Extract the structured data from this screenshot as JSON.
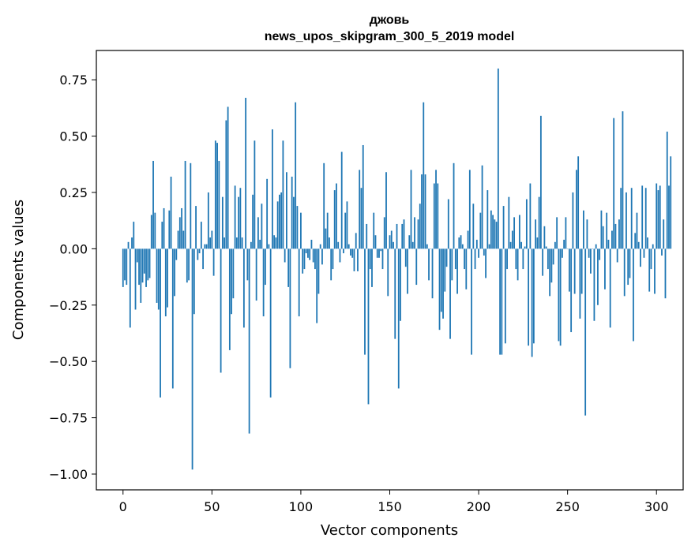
{
  "chart_data": {
    "type": "bar",
    "title_lines": [
      "джовь",
      "news_upos_skipgram_300_5_2019 model"
    ],
    "xlabel": "Vector components",
    "ylabel": "Components values",
    "xlim": [
      -15,
      315
    ],
    "ylim": [
      -1.07,
      0.88
    ],
    "xticks": [
      0,
      50,
      100,
      150,
      200,
      250,
      300
    ],
    "yticks": [
      -1.0,
      -0.75,
      -0.5,
      -0.25,
      0.0,
      0.25,
      0.5,
      0.75
    ],
    "xtick_labels": [
      "0",
      "50",
      "100",
      "150",
      "200",
      "250",
      "300"
    ],
    "ytick_labels": [
      "−1.00",
      "−0.75",
      "−0.50",
      "−0.25",
      "0.00",
      "0.25",
      "0.50",
      "0.75"
    ],
    "bar_color": "#1f77b4",
    "grid": false,
    "values": [
      -0.17,
      -0.14,
      -0.16,
      0.03,
      -0.35,
      0.05,
      0.12,
      -0.27,
      -0.06,
      -0.16,
      -0.24,
      -0.15,
      -0.11,
      -0.17,
      -0.14,
      -0.13,
      0.15,
      0.39,
      0.16,
      -0.24,
      -0.27,
      -0.66,
      0.12,
      0.18,
      -0.3,
      -0.26,
      0.17,
      0.32,
      -0.62,
      -0.21,
      -0.05,
      0.08,
      0.14,
      0.18,
      0.08,
      0.39,
      -0.15,
      -0.14,
      0.38,
      -0.98,
      -0.29,
      0.19,
      -0.05,
      -0.02,
      0.12,
      -0.09,
      0.02,
      0.02,
      0.25,
      0.05,
      0.08,
      -0.12,
      0.48,
      0.47,
      0.39,
      -0.55,
      0.23,
      0.05,
      0.57,
      0.63,
      -0.45,
      -0.29,
      -0.22,
      0.28,
      0.05,
      0.23,
      0.27,
      0.05,
      -0.35,
      0.67,
      -0.14,
      -0.82,
      0.03,
      0.24,
      0.48,
      -0.23,
      0.14,
      0.04,
      0.2,
      -0.3,
      -0.16,
      0.31,
      0.02,
      -0.66,
      0.53,
      0.06,
      0.05,
      0.21,
      0.24,
      0.25,
      0.48,
      -0.06,
      0.34,
      -0.17,
      -0.53,
      0.32,
      0.23,
      0.65,
      0.19,
      -0.3,
      0.16,
      -0.11,
      -0.09,
      -0.02,
      -0.04,
      -0.05,
      0.04,
      -0.06,
      -0.09,
      -0.33,
      -0.2,
      0.02,
      -0.07,
      0.38,
      0.09,
      0.16,
      0.05,
      -0.14,
      -0.09,
      0.26,
      0.29,
      0.03,
      -0.06,
      0.43,
      -0.02,
      0.16,
      0.21,
      0.02,
      -0.03,
      -0.04,
      -0.1,
      0.07,
      -0.1,
      0.35,
      0.27,
      0.46,
      -0.47,
      0.11,
      -0.69,
      -0.09,
      -0.17,
      0.16,
      0.06,
      -0.04,
      -0.04,
      -0.01,
      -0.09,
      0.14,
      0.34,
      -0.21,
      0.06,
      0.08,
      0.03,
      -0.4,
      0.11,
      -0.62,
      -0.32,
      0.11,
      0.13,
      -0.08,
      -0.2,
      0.06,
      0.35,
      0.03,
      0.14,
      -0.16,
      0.13,
      0.2,
      0.33,
      0.65,
      0.33,
      0.02,
      -0.14,
      0.0,
      -0.22,
      0.29,
      0.35,
      0.29,
      -0.36,
      -0.28,
      -0.31,
      -0.19,
      -0.08,
      0.22,
      -0.4,
      -0.14,
      0.38,
      -0.09,
      -0.2,
      0.05,
      0.06,
      0.02,
      -0.09,
      -0.18,
      0.08,
      0.35,
      -0.47,
      0.2,
      -0.09,
      0.04,
      -0.04,
      0.16,
      0.37,
      -0.03,
      -0.13,
      0.26,
      0.02,
      0.17,
      0.15,
      0.13,
      0.12,
      0.8,
      -0.47,
      -0.47,
      0.19,
      -0.42,
      -0.09,
      0.23,
      0.03,
      0.08,
      0.14,
      -0.09,
      -0.14,
      0.15,
      0.03,
      -0.09,
      0.01,
      0.22,
      -0.43,
      0.29,
      -0.48,
      -0.42,
      0.13,
      0.05,
      0.23,
      0.59,
      -0.12,
      0.1,
      0.01,
      -0.09,
      -0.21,
      -0.15,
      -0.07,
      0.03,
      0.14,
      -0.41,
      -0.43,
      -0.04,
      0.04,
      0.14,
      0.0,
      -0.19,
      -0.37,
      0.25,
      -0.2,
      0.35,
      0.41,
      -0.31,
      -0.2,
      0.17,
      -0.74,
      0.13,
      -0.04,
      -0.11,
      0.0,
      -0.32,
      0.02,
      -0.25,
      -0.05,
      0.17,
      0.1,
      -0.18,
      0.16,
      0.04,
      -0.35,
      0.08,
      0.58,
      0.11,
      -0.06,
      0.13,
      0.27,
      0.61,
      -0.21,
      0.25,
      -0.16,
      -0.13,
      0.27,
      -0.41,
      0.07,
      0.16,
      0.03,
      -0.08,
      0.28,
      -0.04,
      0.27,
      0.05,
      -0.19,
      -0.09,
      0.02,
      -0.2,
      0.29,
      0.26,
      0.28,
      -0.03,
      0.13,
      -0.22,
      0.52,
      0.28,
      0.41
    ]
  }
}
